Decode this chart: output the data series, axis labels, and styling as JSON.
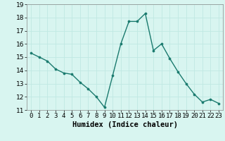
{
  "x": [
    0,
    1,
    2,
    3,
    4,
    5,
    6,
    7,
    8,
    9,
    10,
    11,
    12,
    13,
    14,
    15,
    16,
    17,
    18,
    19,
    20,
    21,
    22,
    23
  ],
  "y": [
    15.3,
    15.0,
    14.7,
    14.1,
    13.8,
    13.7,
    13.1,
    12.6,
    12.0,
    11.2,
    13.6,
    16.0,
    17.7,
    17.7,
    18.3,
    15.5,
    16.0,
    14.9,
    13.9,
    13.0,
    12.2,
    11.6,
    11.8,
    11.5
  ],
  "line_color": "#1a7a6e",
  "marker_color": "#1a7a6e",
  "bg_color": "#d8f5f0",
  "grid_color": "#c0e8e2",
  "xlabel": "Humidex (Indice chaleur)",
  "ylim": [
    11,
    19
  ],
  "xlim": [
    -0.5,
    23.5
  ],
  "yticks": [
    11,
    12,
    13,
    14,
    15,
    16,
    17,
    18,
    19
  ],
  "xticks": [
    0,
    1,
    2,
    3,
    4,
    5,
    6,
    7,
    8,
    9,
    10,
    11,
    12,
    13,
    14,
    15,
    16,
    17,
    18,
    19,
    20,
    21,
    22,
    23
  ],
  "xtick_labels": [
    "0",
    "1",
    "2",
    "3",
    "4",
    "5",
    "6",
    "7",
    "8",
    "9",
    "10",
    "11",
    "12",
    "13",
    "14",
    "15",
    "16",
    "17",
    "18",
    "19",
    "20",
    "21",
    "22",
    "23"
  ],
  "tick_fontsize": 6.5,
  "xlabel_fontsize": 7.5,
  "spine_color": "#888888"
}
